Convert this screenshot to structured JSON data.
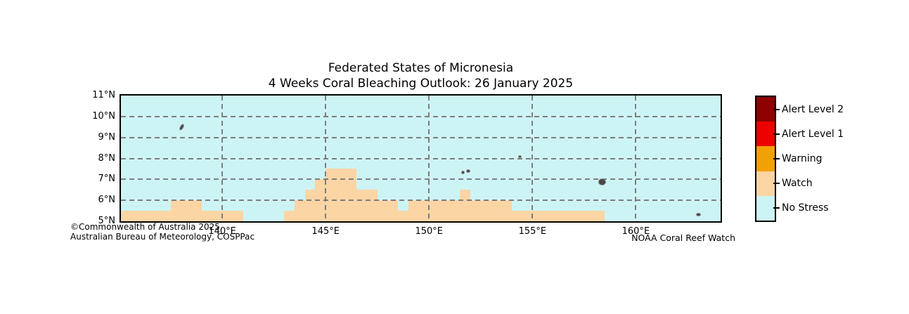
{
  "title": {
    "line1": "Federated States of Micronesia",
    "line2": "4 Weeks Coral Bleaching Outlook: 26 January 2025"
  },
  "attribution": {
    "line1": "©Commonwealth of Australia 2025",
    "line2": "Australian Bureau of Meteorology, COSPPac"
  },
  "credit": "NOAA Coral Reef Watch",
  "legend": {
    "items": [
      {
        "label": "Alert Level 2",
        "color": "#8e0000"
      },
      {
        "label": "Alert Level 1",
        "color": "#ee0000"
      },
      {
        "label": "Warning",
        "color": "#f2a104"
      },
      {
        "label": "Watch",
        "color": "#fcd5a4"
      },
      {
        "label": "No Stress",
        "color": "#cdf4f5"
      }
    ]
  },
  "chart_data": {
    "type": "heatmap",
    "title": "Federated States of Micronesia — 4 Weeks Coral Bleaching Outlook: 26 January 2025",
    "bounds": {
      "lon_min": 135.1,
      "lon_max": 164.1,
      "lat_min": 5,
      "lat_max": 11
    },
    "x_ticks": [
      {
        "lon": 140,
        "label": "140°E"
      },
      {
        "lon": 145,
        "label": "145°E"
      },
      {
        "lon": 150,
        "label": "150°E"
      },
      {
        "lon": 155,
        "label": "155°E"
      },
      {
        "lon": 160,
        "label": "160°E"
      }
    ],
    "y_ticks": [
      {
        "lat": 11,
        "label": "11°N"
      },
      {
        "lat": 10,
        "label": "10°N"
      },
      {
        "lat": 9,
        "label": "9°N"
      },
      {
        "lat": 8,
        "label": "8°N"
      },
      {
        "lat": 7,
        "label": "7°N"
      },
      {
        "lat": 6,
        "label": "6°N"
      },
      {
        "lat": 5,
        "label": "5°N"
      }
    ],
    "x_gridlines": [
      140,
      145,
      150,
      155,
      160
    ],
    "y_gridlines": [
      6,
      7,
      8,
      9,
      10
    ],
    "grid_style": "dashed",
    "background_level": "No Stress",
    "watch_cells": [
      {
        "lat_min": 5.0,
        "lat_max": 5.5,
        "lon_min": 135.1,
        "lon_max": 141.0
      },
      {
        "lat_min": 5.0,
        "lat_max": 5.5,
        "lon_min": 143.0,
        "lon_max": 158.5
      },
      {
        "lat_min": 5.5,
        "lat_max": 6.0,
        "lon_min": 137.5,
        "lon_max": 139.0
      },
      {
        "lat_min": 5.5,
        "lat_max": 6.0,
        "lon_min": 143.5,
        "lon_max": 148.5
      },
      {
        "lat_min": 5.5,
        "lat_max": 6.0,
        "lon_min": 149.0,
        "lon_max": 154.0
      },
      {
        "lat_min": 6.0,
        "lat_max": 6.5,
        "lon_min": 144.0,
        "lon_max": 147.5
      },
      {
        "lat_min": 6.0,
        "lat_max": 6.5,
        "lon_min": 151.5,
        "lon_max": 152.0
      },
      {
        "lat_min": 6.5,
        "lat_max": 7.0,
        "lon_min": 144.5,
        "lon_max": 146.5
      },
      {
        "lat_min": 7.0,
        "lat_max": 7.5,
        "lon_min": 145.0,
        "lon_max": 146.5
      }
    ],
    "islands": [
      {
        "lon": 138.0,
        "lat": 9.53,
        "w": 3,
        "h": 8,
        "rot": 30
      },
      {
        "lon": 151.6,
        "lat": 7.35,
        "w": 3,
        "h": 3,
        "rot": 0
      },
      {
        "lon": 151.85,
        "lat": 7.42,
        "w": 4,
        "h": 3,
        "rot": 0
      },
      {
        "lon": 154.35,
        "lat": 8.12,
        "w": 3,
        "h": 2,
        "rot": 0
      },
      {
        "lon": 158.35,
        "lat": 6.9,
        "w": 9,
        "h": 8,
        "rot": 0
      },
      {
        "lon": 163.0,
        "lat": 5.35,
        "w": 5,
        "h": 3,
        "rot": 0
      }
    ],
    "colors": {
      "watch": "#fcd5a4",
      "no_stress": "#cdf4f5",
      "grid": "#7d7d7d",
      "land": "#474747",
      "border": "#000000"
    }
  }
}
